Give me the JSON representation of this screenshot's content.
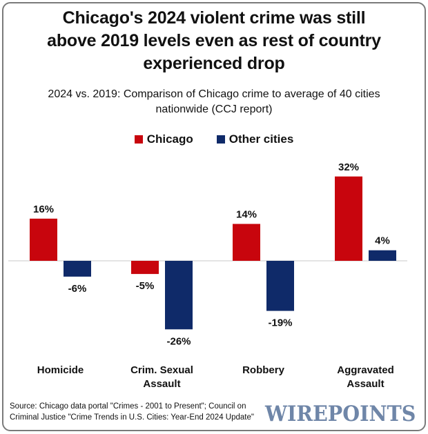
{
  "header": {
    "title_lines": [
      "Chicago's 2024 violent crime was still",
      "above 2019 levels even as rest of country",
      "experienced drop"
    ],
    "subtitle_lines": [
      "2024 vs. 2019: Comparison of Chicago crime to average of 40 cities",
      "nationwide (CCJ report)"
    ]
  },
  "legend": [
    {
      "label": "Chicago",
      "color": "#c8050d"
    },
    {
      "label": "Other cities",
      "color": "#0f2a69"
    }
  ],
  "footer": {
    "source_lines": [
      "Source: Chicago data portal \"Crimes - 2001 to Present\"; Council on",
      "Criminal Justice \"Crime Trends in U.S. Cities: Year-End 2024 Update\""
    ],
    "logo": "WIREPOINTS"
  },
  "chart_data": {
    "type": "bar",
    "title": "Chicago's 2024 violent crime was still above 2019 levels even as rest of country experienced drop",
    "subtitle": "2024 vs. 2019: Comparison of Chicago crime to average of 40 cities nationwide (CCJ report)",
    "xlabel": "",
    "ylabel": "",
    "grid": false,
    "legend_position": "top-center",
    "unit": "%",
    "categories": [
      [
        "Homicide"
      ],
      [
        "Crim. Sexual",
        "Assault"
      ],
      [
        "Robbery"
      ],
      [
        "Aggravated",
        "Assault"
      ]
    ],
    "series": [
      {
        "name": "Chicago",
        "color": "#c8050d",
        "values": [
          16,
          -5,
          14,
          32
        ],
        "labels": [
          "16%",
          "-5%",
          "14%",
          "32%"
        ]
      },
      {
        "name": "Other cities",
        "color": "#0f2a69",
        "values": [
          -6,
          -26,
          -19,
          4
        ],
        "labels": [
          "-6%",
          "-26%",
          "-19%",
          "4%"
        ]
      }
    ],
    "ylim": [
      -30,
      35
    ]
  }
}
